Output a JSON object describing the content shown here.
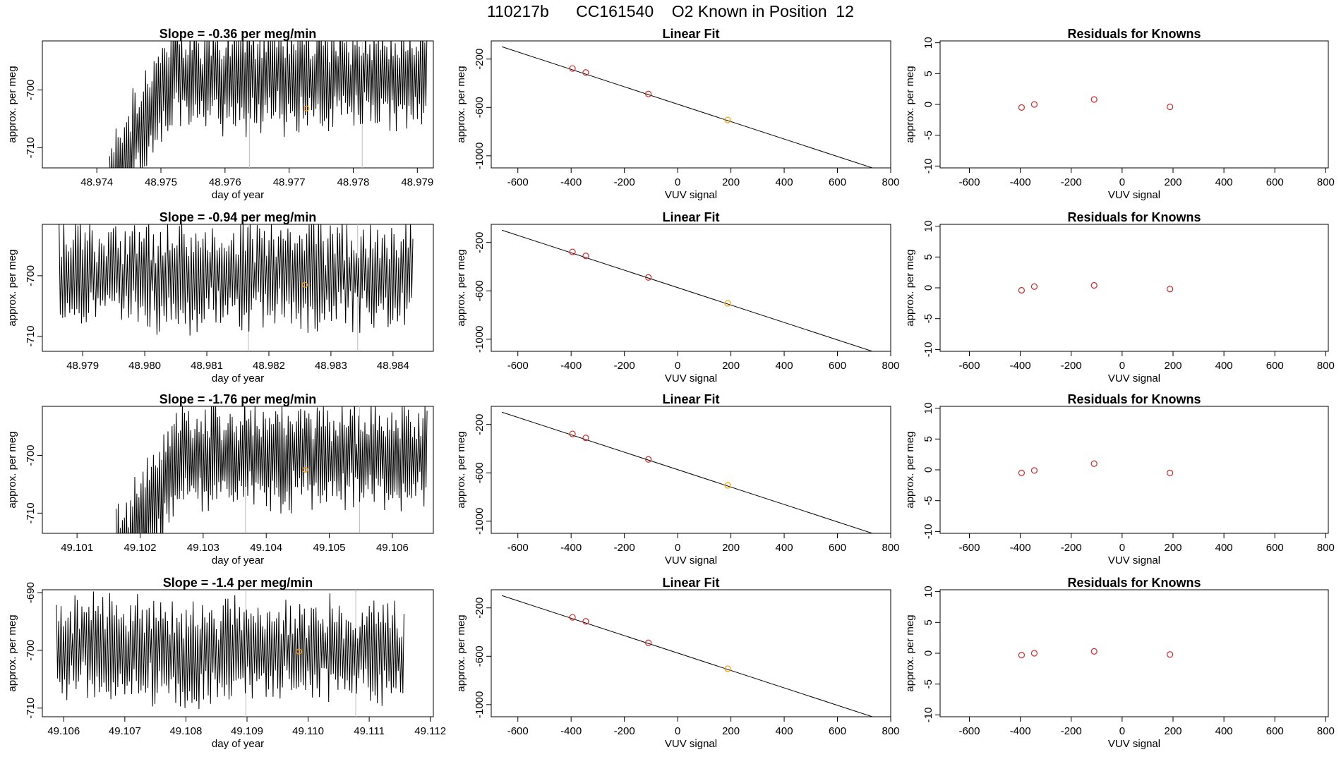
{
  "figure": {
    "title": "110217b      CC161540    O2 Known in Position  12",
    "colors": {
      "trace": "#000000",
      "frame": "#000000",
      "vline": "#bdbdbd",
      "known": "#d62728",
      "unknown": "#ff9900"
    }
  },
  "chart_data": [
    {
      "type": "line",
      "panel": "timeseries",
      "row": 1,
      "title": "Slope =  -0.36  per meg/min",
      "xlabel": "day of year",
      "ylabel": "approx. per meg",
      "xlim": [
        48.97315,
        48.97925
      ],
      "ylim": [
        -713.5,
        -691.5
      ],
      "xticks": [
        48.974,
        48.975,
        48.976,
        48.977,
        48.978,
        48.979
      ],
      "xtick_labels": [
        "48.974",
        "48.975",
        "48.976",
        "48.977",
        "48.978",
        "48.979"
      ],
      "yticks": [
        -700,
        -710
      ],
      "ytick_labels": [
        "-700",
        "-710"
      ],
      "x_start": 48.9742,
      "x_end": 48.97915,
      "level": -698,
      "amplitude": 6,
      "ramp_end": 48.9751,
      "vlines": [
        48.97638,
        48.97814
      ],
      "highlight": {
        "x": 48.97727,
        "y": -703.2
      }
    },
    {
      "type": "scatter",
      "panel": "linear-fit",
      "row": 1,
      "title": "Linear Fit",
      "xlabel": "VUV signal",
      "ylabel": "approx. per meg",
      "xlim": [
        -700,
        800
      ],
      "ylim": [
        -1100,
        -50
      ],
      "xticks": [
        -600,
        -400,
        -200,
        0,
        200,
        400,
        600,
        800
      ],
      "xtick_labels": [
        "-600",
        "-400",
        "-200",
        "0",
        "200",
        "400",
        "600",
        "800"
      ],
      "yticks": [
        -200,
        -600,
        -1000
      ],
      "ytick_labels": [
        "-200",
        "-600",
        "-1000"
      ],
      "fit_line": {
        "x": [
          -660,
          745
        ],
        "y": [
          -98,
          -1110
        ]
      },
      "points": {
        "x": [
          -395,
          -345,
          -110,
          188
        ],
        "y": [
          -278,
          -311,
          -489,
          -703
        ],
        "kind": [
          "known",
          "known",
          "known",
          "unknown"
        ]
      }
    },
    {
      "type": "scatter",
      "panel": "residuals",
      "row": 1,
      "title": "Residuals for Knowns",
      "xlabel": "VUV signal",
      "ylabel": "approx. per meg",
      "xlim": [
        -715,
        810
      ],
      "ylim": [
        -10.3,
        10.3
      ],
      "xticks": [
        -600,
        -400,
        -200,
        0,
        200,
        400,
        600,
        800
      ],
      "xtick_labels": [
        "-600",
        "-400",
        "-200",
        "0",
        "200",
        "400",
        "600",
        "800"
      ],
      "yticks": [
        10,
        5,
        0,
        -5,
        -10
      ],
      "ytick_labels": [
        "10",
        "5",
        "0",
        "-5",
        "-10"
      ],
      "points": {
        "x": [
          -395,
          -345,
          -110,
          188
        ],
        "y": [
          -0.5,
          0.0,
          0.8,
          -0.4
        ]
      }
    },
    {
      "type": "line",
      "panel": "timeseries",
      "row": 2,
      "title": "Slope =  -0.94  per meg/min",
      "xlabel": "day of year",
      "ylabel": "approx. per meg",
      "xlim": [
        48.97835,
        48.98465
      ],
      "ylim": [
        -712.5,
        -691.5
      ],
      "xticks": [
        48.979,
        48.98,
        48.981,
        48.982,
        48.983,
        48.984
      ],
      "xtick_labels": [
        "48.979",
        "48.980",
        "48.981",
        "48.982",
        "48.983",
        "48.984"
      ],
      "yticks": [
        -700,
        -710
      ],
      "ytick_labels": [
        "-700",
        "-710"
      ],
      "x_start": 48.97862,
      "x_end": 48.98432,
      "level": -700,
      "amplitude": 6,
      "ramp_end": 48.97862,
      "vlines": [
        48.98167,
        48.98343
      ],
      "highlight": {
        "x": 48.98258,
        "y": -701.5
      }
    },
    {
      "type": "scatter",
      "panel": "linear-fit",
      "row": 2,
      "title": "Linear Fit",
      "xlabel": "VUV signal",
      "ylabel": "approx. per meg",
      "xlim": [
        -700,
        800
      ],
      "ylim": [
        -1100,
        -50
      ],
      "xticks": [
        -600,
        -400,
        -200,
        0,
        200,
        400,
        600,
        800
      ],
      "xtick_labels": [
        "-600",
        "-400",
        "-200",
        "0",
        "200",
        "400",
        "600",
        "800"
      ],
      "yticks": [
        -200,
        -600,
        -1000
      ],
      "ytick_labels": [
        "-200",
        "-600",
        "-1000"
      ],
      "fit_line": {
        "x": [
          -660,
          745
        ],
        "y": [
          -98,
          -1110
        ]
      },
      "points": {
        "x": [
          -395,
          -345,
          -110,
          188
        ],
        "y": [
          -278,
          -311,
          -489,
          -703
        ],
        "kind": [
          "known",
          "known",
          "known",
          "unknown"
        ]
      }
    },
    {
      "type": "scatter",
      "panel": "residuals",
      "row": 2,
      "title": "Residuals for Knowns",
      "xlabel": "VUV signal",
      "ylabel": "approx. per meg",
      "xlim": [
        -715,
        810
      ],
      "ylim": [
        -10.3,
        10.3
      ],
      "xticks": [
        -600,
        -400,
        -200,
        0,
        200,
        400,
        600,
        800
      ],
      "xtick_labels": [
        "-600",
        "-400",
        "-200",
        "0",
        "200",
        "400",
        "600",
        "800"
      ],
      "yticks": [
        10,
        5,
        0,
        -5,
        -10
      ],
      "ytick_labels": [
        "10",
        "5",
        "0",
        "-5",
        "-10"
      ],
      "points": {
        "x": [
          -395,
          -345,
          -110,
          188
        ],
        "y": [
          -0.4,
          0.2,
          0.4,
          -0.2
        ]
      }
    },
    {
      "type": "line",
      "panel": "timeseries",
      "row": 3,
      "title": "Slope =  -1.76  per meg/min",
      "xlabel": "day of year",
      "ylabel": "approx. per meg",
      "xlim": [
        49.10045,
        49.10665
      ],
      "ylim": [
        -713.5,
        -691.5
      ],
      "xticks": [
        49.101,
        49.102,
        49.103,
        49.104,
        49.105,
        49.106
      ],
      "xtick_labels": [
        "49.101",
        "49.102",
        "49.103",
        "49.104",
        "49.105",
        "49.106"
      ],
      "yticks": [
        -700,
        -710
      ],
      "ytick_labels": [
        "-700",
        "-710"
      ],
      "x_start": 49.10162,
      "x_end": 49.10655,
      "level": -700,
      "amplitude": 6,
      "ramp_end": 49.1027,
      "vlines": [
        49.10367,
        49.10548
      ],
      "highlight": {
        "x": 49.10462,
        "y": -702.5
      }
    },
    {
      "type": "scatter",
      "panel": "linear-fit",
      "row": 3,
      "title": "Linear Fit",
      "xlabel": "VUV signal",
      "ylabel": "approx. per meg",
      "xlim": [
        -700,
        800
      ],
      "ylim": [
        -1100,
        -50
      ],
      "xticks": [
        -600,
        -400,
        -200,
        0,
        200,
        400,
        600,
        800
      ],
      "xtick_labels": [
        "-600",
        "-400",
        "-200",
        "0",
        "200",
        "400",
        "600",
        "800"
      ],
      "yticks": [
        -200,
        -600,
        -1000
      ],
      "ytick_labels": [
        "-200",
        "-600",
        "-1000"
      ],
      "fit_line": {
        "x": [
          -660,
          745
        ],
        "y": [
          -98,
          -1110
        ]
      },
      "points": {
        "x": [
          -395,
          -345,
          -110,
          188
        ],
        "y": [
          -278,
          -311,
          -489,
          -703
        ],
        "kind": [
          "known",
          "known",
          "known",
          "unknown"
        ]
      }
    },
    {
      "type": "scatter",
      "panel": "residuals",
      "row": 3,
      "title": "Residuals for Knowns",
      "xlabel": "VUV signal",
      "ylabel": "approx. per meg",
      "xlim": [
        -715,
        810
      ],
      "ylim": [
        -10.3,
        10.3
      ],
      "xticks": [
        -600,
        -400,
        -200,
        0,
        200,
        400,
        600,
        800
      ],
      "xtick_labels": [
        "-600",
        "-400",
        "-200",
        "0",
        "200",
        "400",
        "600",
        "800"
      ],
      "yticks": [
        10,
        5,
        0,
        -5,
        -10
      ],
      "ytick_labels": [
        "10",
        "5",
        "0",
        "-5",
        "-10"
      ],
      "points": {
        "x": [
          -395,
          -345,
          -110,
          188
        ],
        "y": [
          -0.5,
          -0.1,
          1.0,
          -0.5
        ]
      }
    },
    {
      "type": "line",
      "panel": "timeseries",
      "row": 4,
      "title": "Slope =  -1.4  per meg/min",
      "xlabel": "day of year",
      "ylabel": "approx. per meg",
      "xlim": [
        49.10565,
        49.11205
      ],
      "ylim": [
        -711.5,
        -689.5
      ],
      "xticks": [
        49.106,
        49.107,
        49.108,
        49.109,
        49.11,
        49.111,
        49.112
      ],
      "xtick_labels": [
        "49.106",
        "49.107",
        "49.108",
        "49.109",
        "49.110",
        "49.111",
        "49.112"
      ],
      "yticks": [
        -690,
        -700,
        -710
      ],
      "ytick_labels": [
        "-690",
        "-700",
        "-710"
      ],
      "x_start": 49.10588,
      "x_end": 49.11157,
      "level": -700,
      "amplitude": 6,
      "ramp_end": 49.10588,
      "vlines": [
        49.10898,
        49.11078
      ],
      "highlight": {
        "x": 49.10985,
        "y": -700.2
      }
    },
    {
      "type": "scatter",
      "panel": "linear-fit",
      "row": 4,
      "title": "Linear Fit",
      "xlabel": "VUV signal",
      "ylabel": "approx. per meg",
      "xlim": [
        -700,
        800
      ],
      "ylim": [
        -1100,
        -50
      ],
      "xticks": [
        -600,
        -400,
        -200,
        0,
        200,
        400,
        600,
        800
      ],
      "xtick_labels": [
        "-600",
        "-400",
        "-200",
        "0",
        "200",
        "400",
        "600",
        "800"
      ],
      "yticks": [
        -200,
        -600,
        -1000
      ],
      "ytick_labels": [
        "-200",
        "-600",
        "-1000"
      ],
      "fit_line": {
        "x": [
          -660,
          745
        ],
        "y": [
          -98,
          -1110
        ]
      },
      "points": {
        "x": [
          -395,
          -345,
          -110,
          188
        ],
        "y": [
          -278,
          -311,
          -489,
          -703
        ],
        "kind": [
          "known",
          "known",
          "known",
          "unknown"
        ]
      }
    },
    {
      "type": "scatter",
      "panel": "residuals",
      "row": 4,
      "title": "Residuals for Knowns",
      "xlabel": "VUV signal",
      "ylabel": "approx. per meg",
      "xlim": [
        -715,
        810
      ],
      "ylim": [
        -10.3,
        10.3
      ],
      "xticks": [
        -600,
        -400,
        -200,
        0,
        200,
        400,
        600,
        800
      ],
      "xtick_labels": [
        "-600",
        "-400",
        "-200",
        "0",
        "200",
        "400",
        "600",
        "800"
      ],
      "yticks": [
        10,
        5,
        0,
        -5,
        -10
      ],
      "ytick_labels": [
        "10",
        "5",
        "0",
        "-5",
        "-10"
      ],
      "points": {
        "x": [
          -395,
          -345,
          -110,
          188
        ],
        "y": [
          -0.3,
          0.0,
          0.3,
          -0.2
        ]
      }
    }
  ]
}
